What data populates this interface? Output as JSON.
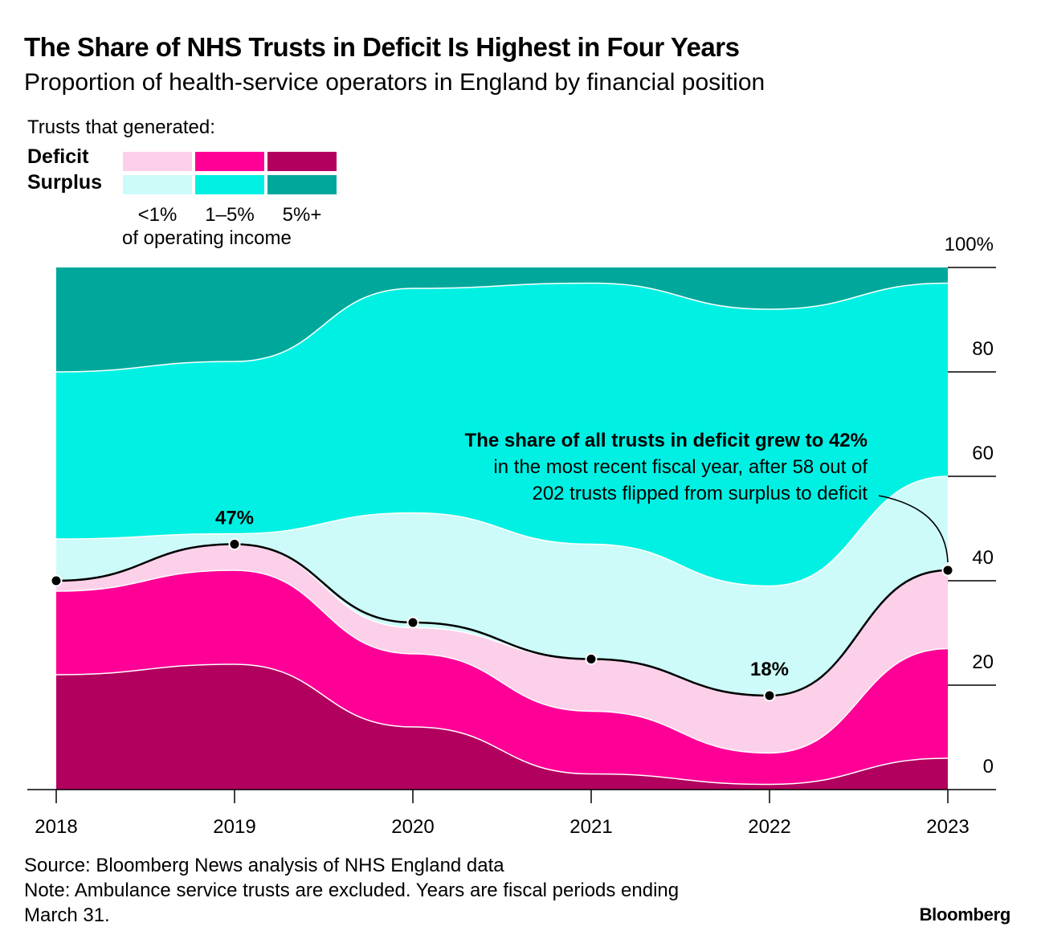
{
  "title": "The Share of NHS Trusts in Deficit Is Highest in Four Years",
  "subtitle": "Proportion of health-service operators in England by financial position",
  "legend": {
    "title": "Trusts that generated:",
    "deficit_label": "Deficit",
    "surplus_label": "Surplus",
    "columns": [
      "<1%",
      "1–5%",
      "5%+"
    ],
    "unit_label": "of operating income",
    "deficit_colors": [
      "#fdd0ea",
      "#ff0097",
      "#b2005f"
    ],
    "surplus_colors": [
      "#ccfbf9",
      "#00f1e3",
      "#00a89c"
    ]
  },
  "chart_data": {
    "type": "area",
    "stacked": true,
    "x": [
      "2018",
      "2019",
      "2020",
      "2021",
      "2022",
      "2023"
    ],
    "series": [
      {
        "name": "Deficit 5%+",
        "values": [
          22,
          24,
          12,
          3,
          1,
          6
        ]
      },
      {
        "name": "Deficit 1–5%",
        "values": [
          16,
          18,
          14,
          12,
          6,
          21
        ]
      },
      {
        "name": "Deficit <1%",
        "values": [
          2,
          5,
          5,
          10,
          11,
          15
        ]
      },
      {
        "name": "Surplus <1%",
        "values": [
          8,
          2,
          22,
          22,
          21,
          18
        ]
      },
      {
        "name": "Surplus 1–5%",
        "values": [
          32,
          33,
          43,
          50,
          53,
          37
        ]
      },
      {
        "name": "Surplus 5%+",
        "values": [
          20,
          18,
          4,
          3,
          8,
          3
        ]
      }
    ],
    "deficit_total_line": {
      "name": "Share in deficit",
      "values": [
        40,
        47,
        32,
        25,
        18,
        42
      ]
    },
    "y_ticks": [
      0,
      20,
      40,
      60,
      80,
      100
    ],
    "y_tick_labels": [
      "0",
      "20",
      "40",
      "60",
      "80",
      "100%"
    ],
    "ylim": [
      0,
      100
    ],
    "point_labels": [
      {
        "x": "2019",
        "label": "47%"
      },
      {
        "x": "2022",
        "label": "18%"
      }
    ],
    "annotation": {
      "bold": "The share of all trusts in deficit grew to 42%",
      "line1": "in the most recent fiscal year, after 58 out of",
      "line2": "202 trusts flipped from surplus to deficit"
    }
  },
  "footer": {
    "source": "Source: Bloomberg News analysis of NHS England data",
    "note_line1": "Note: Ambulance service trusts are excluded. Years are fiscal periods ending",
    "note_line2": "March 31.",
    "brand": "Bloomberg"
  }
}
